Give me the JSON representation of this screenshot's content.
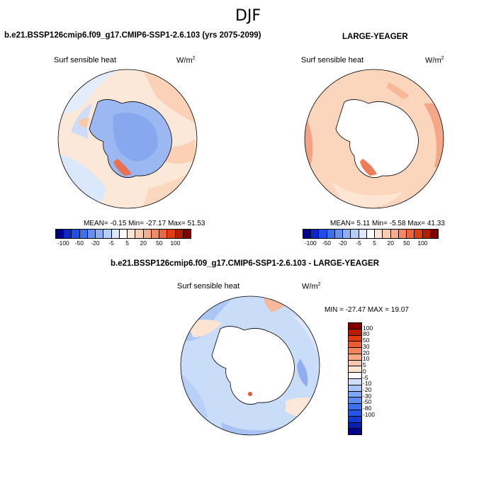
{
  "page_title": "DJF",
  "panel_left": {
    "title": "b.e21.BSSP126cmip6.f09_g17.CMIP6-SSP1-2.6.103 (yrs 2075-2099)",
    "variable": "Surf sensible heat",
    "units": "W/m",
    "units_exp": "2",
    "stats": "MEAN=  -0.15  Min=  -27.17  Max=  51.53"
  },
  "panel_right": {
    "title": "LARGE-YEAGER",
    "variable": "Surf sensible heat",
    "units": "W/m",
    "units_exp": "2",
    "stats": "MEAN=  5.11  Min=  -5.58  Max=  41.33"
  },
  "panel_bottom": {
    "title": "b.e21.BSSP126cmip6.f09_g17.CMIP6-SSP1-2.6.103 - LARGE-YEAGER",
    "variable": "Surf sensible heat",
    "units": "W/m",
    "units_exp": "2",
    "stats": "MIN = -27.47 MAX =  19.07"
  },
  "colorbar_top": {
    "colors": [
      "#00008b",
      "#0a28c8",
      "#1e4ee6",
      "#3c6ef0",
      "#6490f5",
      "#8cb0f8",
      "#b4cdfa",
      "#dce8fc",
      "#ffffff",
      "#fde6d2",
      "#fbcdb0",
      "#f8ad8c",
      "#f48a64",
      "#ef6438",
      "#e13d12",
      "#b41e00",
      "#800000"
    ],
    "ticks": [
      "-100",
      "-50",
      "-20",
      "-5",
      "5",
      "20",
      "50",
      "100"
    ]
  },
  "colorbar_bottom": {
    "colors": [
      "#00008b",
      "#0820b0",
      "#1438d0",
      "#2555e6",
      "#3c70ee",
      "#5a8cf3",
      "#7ea8f7",
      "#a6c4fa",
      "#d0e0fc",
      "#ffffff",
      "#fde3d0",
      "#fbc7ac",
      "#f8a884",
      "#f4845a",
      "#ec5c32",
      "#dd3a12",
      "#b81c00",
      "#800000"
    ],
    "ticks": [
      "100",
      "80",
      "50",
      "30",
      "20",
      "10",
      "5",
      "0",
      "-5",
      "-10",
      "-20",
      "-30",
      "-50",
      "-80",
      "-100"
    ]
  }
}
